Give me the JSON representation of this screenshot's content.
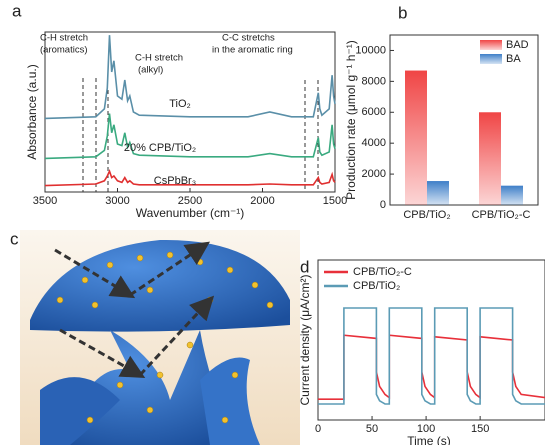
{
  "chart_data": [
    {
      "panel": "a",
      "type": "line",
      "xlabel": "Wavenumber (cm⁻¹)",
      "ylabel": "Absorbance (a.u.)",
      "xlim": [
        3500,
        1500
      ],
      "xticks": [
        3500,
        3000,
        2500,
        2000,
        1500
      ],
      "ylim": [
        0,
        10
      ],
      "legend": "inline",
      "annotations": [
        "C-H stretch",
        "(aromatics)",
        "C-H stretch",
        "(alkyl)",
        "C-C stretchs",
        "in the aromatic ring"
      ],
      "x": [
        3500,
        3150,
        3090,
        3070,
        3055,
        3040,
        3025,
        3000,
        2970,
        2950,
        2930,
        2915,
        2890,
        2850,
        2500,
        2100,
        1950,
        1800,
        1650,
        1615,
        1605,
        1590,
        1540,
        1520,
        1510,
        1500
      ],
      "series": [
        {
          "name": "TiO₂",
          "color": "#5a8fa8",
          "values": [
            4.6,
            4.7,
            5.2,
            6.5,
            9.8,
            7.5,
            8.2,
            6.0,
            5.8,
            7.0,
            5.7,
            6.0,
            5.0,
            4.8,
            4.7,
            4.7,
            5.0,
            4.7,
            4.7,
            6.2,
            5.2,
            4.8,
            5.2,
            7.3,
            6.0,
            5.5
          ]
        },
        {
          "name": "20% CPB/TiO₂",
          "color": "#3aaa80",
          "values": [
            2.1,
            2.2,
            2.6,
            3.5,
            4.9,
            3.7,
            4.2,
            3.0,
            2.9,
            3.7,
            2.8,
            3.1,
            2.4,
            2.3,
            2.2,
            2.2,
            2.4,
            2.2,
            2.2,
            3.4,
            2.5,
            2.3,
            2.5,
            4.2,
            3.0,
            2.7
          ]
        },
        {
          "name": "CsPbBr₃",
          "color": "#e03030",
          "values": [
            0.4,
            0.5,
            0.7,
            1.0,
            1.3,
            0.9,
            1.0,
            0.7,
            0.6,
            0.9,
            0.6,
            0.7,
            0.5,
            0.45,
            0.45,
            0.45,
            0.5,
            0.45,
            0.45,
            0.9,
            0.6,
            0.5,
            0.6,
            1.1,
            0.7,
            0.6
          ]
        }
      ]
    },
    {
      "panel": "b",
      "type": "bar",
      "ylabel": "Production rate (μmol g⁻¹ h⁻¹)",
      "categories": [
        "CPB/TiO₂",
        "CPB/TiO₂-C"
      ],
      "ylim": [
        0,
        11000
      ],
      "yticks": [
        0,
        2000,
        4000,
        6000,
        8000,
        10000
      ],
      "legend": "upper right",
      "series": [
        {
          "name": "BAD",
          "color": "#f04545",
          "values": [
            8700,
            6000
          ]
        },
        {
          "name": "BA",
          "color": "#3f7fc8",
          "values": [
            1550,
            1250
          ]
        }
      ]
    },
    {
      "panel": "c",
      "type": "illustration"
    },
    {
      "panel": "d",
      "type": "line",
      "xlabel": "Time (s)",
      "ylabel": "Current density (μA/cm²)",
      "xlim": [
        0,
        210
      ],
      "xticks": [
        0,
        50,
        100,
        150
      ],
      "ylim": [
        0,
        10
      ],
      "legend": "upper left",
      "x": [
        0,
        24,
        24,
        54,
        54,
        57,
        62,
        66,
        66,
        96,
        96,
        99,
        104,
        108,
        108,
        138,
        138,
        141,
        146,
        150,
        150,
        180,
        180,
        183,
        188,
        210
      ],
      "series": [
        {
          "name": "CPB/TiO₂-C",
          "color": "#e8303a",
          "values": [
            1.3,
            1.3,
            5.3,
            5.1,
            3.0,
            2.1,
            1.6,
            1.4,
            5.3,
            5.1,
            3.0,
            2.1,
            1.6,
            1.4,
            5.2,
            5.0,
            3.0,
            2.1,
            1.6,
            1.4,
            5.2,
            5.0,
            3.0,
            2.1,
            1.6,
            1.4
          ]
        },
        {
          "name": "CPB/TiO₂",
          "color": "#5b9bb5",
          "values": [
            1.0,
            1.0,
            7.0,
            7.0,
            1.6,
            1.2,
            1.0,
            1.0,
            7.0,
            7.0,
            1.6,
            1.2,
            1.0,
            1.0,
            7.0,
            7.0,
            1.6,
            1.2,
            1.0,
            1.0,
            7.0,
            7.0,
            1.6,
            1.2,
            1.0,
            1.0
          ]
        }
      ]
    }
  ]
}
